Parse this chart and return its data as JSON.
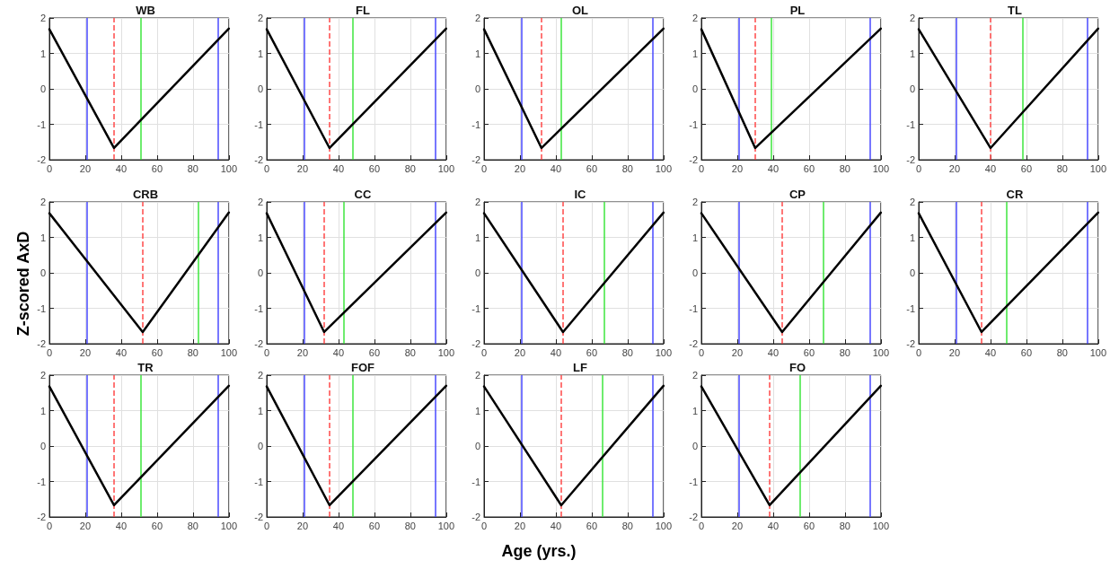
{
  "chart_data": [
    {
      "type": "line",
      "title": "WB",
      "x": [
        0,
        36,
        100
      ],
      "values": [
        1.68,
        -1.67,
        1.7
      ],
      "color": "#000000",
      "marker": "none",
      "xlim": [
        0,
        100
      ],
      "xticks": [
        0,
        20,
        40,
        60,
        80,
        100
      ],
      "ylim": [
        -2,
        2
      ],
      "yticks": [
        -2,
        -1,
        0,
        1,
        2
      ],
      "grid": true,
      "ref_lines": [
        {
          "axis": "x",
          "value": 21,
          "color": "#4a4aff"
        },
        {
          "axis": "x",
          "value": 36,
          "color": "#ff4a4a",
          "line_style": "dashed"
        },
        {
          "axis": "x",
          "value": 51,
          "color": "#3ee63e"
        },
        {
          "axis": "x",
          "value": 94,
          "color": "#4a4aff"
        }
      ]
    },
    {
      "type": "line",
      "title": "FL",
      "x": [
        0,
        35,
        100
      ],
      "values": [
        1.68,
        -1.67,
        1.7
      ],
      "color": "#000000",
      "marker": "none",
      "xlim": [
        0,
        100
      ],
      "xticks": [
        0,
        20,
        40,
        60,
        80,
        100
      ],
      "ylim": [
        -2,
        2
      ],
      "yticks": [
        -2,
        -1,
        0,
        1,
        2
      ],
      "grid": true,
      "ref_lines": [
        {
          "axis": "x",
          "value": 21,
          "color": "#4a4aff"
        },
        {
          "axis": "x",
          "value": 35,
          "color": "#ff4a4a",
          "line_style": "dashed"
        },
        {
          "axis": "x",
          "value": 48,
          "color": "#3ee63e"
        },
        {
          "axis": "x",
          "value": 94,
          "color": "#4a4aff"
        }
      ]
    },
    {
      "type": "line",
      "title": "OL",
      "x": [
        0,
        32,
        100
      ],
      "values": [
        1.68,
        -1.67,
        1.7
      ],
      "color": "#000000",
      "marker": "none",
      "xlim": [
        0,
        100
      ],
      "xticks": [
        0,
        20,
        40,
        60,
        80,
        100
      ],
      "ylim": [
        -2,
        2
      ],
      "yticks": [
        -2,
        -1,
        0,
        1,
        2
      ],
      "grid": true,
      "ref_lines": [
        {
          "axis": "x",
          "value": 21,
          "color": "#4a4aff"
        },
        {
          "axis": "x",
          "value": 32,
          "color": "#ff4a4a",
          "line_style": "dashed"
        },
        {
          "axis": "x",
          "value": 43,
          "color": "#3ee63e"
        },
        {
          "axis": "x",
          "value": 94,
          "color": "#4a4aff"
        }
      ]
    },
    {
      "type": "line",
      "title": "PL",
      "x": [
        0,
        30,
        100
      ],
      "values": [
        1.68,
        -1.67,
        1.7
      ],
      "color": "#000000",
      "marker": "none",
      "xlim": [
        0,
        100
      ],
      "xticks": [
        0,
        20,
        40,
        60,
        80,
        100
      ],
      "ylim": [
        -2,
        2
      ],
      "yticks": [
        -2,
        -1,
        0,
        1,
        2
      ],
      "grid": true,
      "ref_lines": [
        {
          "axis": "x",
          "value": 21,
          "color": "#4a4aff"
        },
        {
          "axis": "x",
          "value": 30,
          "color": "#ff4a4a",
          "line_style": "dashed"
        },
        {
          "axis": "x",
          "value": 39,
          "color": "#3ee63e"
        },
        {
          "axis": "x",
          "value": 94,
          "color": "#4a4aff"
        }
      ]
    },
    {
      "type": "line",
      "title": "TL",
      "x": [
        0,
        40,
        100
      ],
      "values": [
        1.68,
        -1.67,
        1.7
      ],
      "color": "#000000",
      "marker": "none",
      "xlim": [
        0,
        100
      ],
      "xticks": [
        0,
        20,
        40,
        60,
        80,
        100
      ],
      "ylim": [
        -2,
        2
      ],
      "yticks": [
        -2,
        -1,
        0,
        1,
        2
      ],
      "grid": true,
      "ref_lines": [
        {
          "axis": "x",
          "value": 21,
          "color": "#4a4aff"
        },
        {
          "axis": "x",
          "value": 40,
          "color": "#ff4a4a",
          "line_style": "dashed"
        },
        {
          "axis": "x",
          "value": 58,
          "color": "#3ee63e"
        },
        {
          "axis": "x",
          "value": 94,
          "color": "#4a4aff"
        }
      ]
    },
    {
      "type": "line",
      "title": "CRB",
      "ylabel": "Z-scored AxD",
      "x": [
        0,
        52,
        100
      ],
      "values": [
        1.68,
        -1.67,
        1.7
      ],
      "color": "#000000",
      "marker": "none",
      "xlim": [
        0,
        100
      ],
      "xticks": [
        0,
        20,
        40,
        60,
        80,
        100
      ],
      "ylim": [
        -2,
        2
      ],
      "yticks": [
        -2,
        -1,
        0,
        1,
        2
      ],
      "grid": true,
      "ref_lines": [
        {
          "axis": "x",
          "value": 21,
          "color": "#4a4aff"
        },
        {
          "axis": "x",
          "value": 52,
          "color": "#ff4a4a",
          "line_style": "dashed"
        },
        {
          "axis": "x",
          "value": 83,
          "color": "#3ee63e"
        },
        {
          "axis": "x",
          "value": 94,
          "color": "#4a4aff"
        }
      ]
    },
    {
      "type": "line",
      "title": "CC",
      "x": [
        0,
        32,
        100
      ],
      "values": [
        1.68,
        -1.67,
        1.7
      ],
      "color": "#000000",
      "marker": "none",
      "xlim": [
        0,
        100
      ],
      "xticks": [
        0,
        20,
        40,
        60,
        80,
        100
      ],
      "ylim": [
        -2,
        2
      ],
      "yticks": [
        -2,
        -1,
        0,
        1,
        2
      ],
      "grid": true,
      "ref_lines": [
        {
          "axis": "x",
          "value": 21,
          "color": "#4a4aff"
        },
        {
          "axis": "x",
          "value": 32,
          "color": "#ff4a4a",
          "line_style": "dashed"
        },
        {
          "axis": "x",
          "value": 43,
          "color": "#3ee63e"
        },
        {
          "axis": "x",
          "value": 94,
          "color": "#4a4aff"
        }
      ]
    },
    {
      "type": "line",
      "title": "IC",
      "x": [
        0,
        44,
        100
      ],
      "values": [
        1.68,
        -1.67,
        1.7
      ],
      "color": "#000000",
      "marker": "none",
      "xlim": [
        0,
        100
      ],
      "xticks": [
        0,
        20,
        40,
        60,
        80,
        100
      ],
      "ylim": [
        -2,
        2
      ],
      "yticks": [
        -2,
        -1,
        0,
        1,
        2
      ],
      "grid": true,
      "ref_lines": [
        {
          "axis": "x",
          "value": 21,
          "color": "#4a4aff"
        },
        {
          "axis": "x",
          "value": 44,
          "color": "#ff4a4a",
          "line_style": "dashed"
        },
        {
          "axis": "x",
          "value": 67,
          "color": "#3ee63e"
        },
        {
          "axis": "x",
          "value": 94,
          "color": "#4a4aff"
        }
      ]
    },
    {
      "type": "line",
      "title": "CP",
      "x": [
        0,
        45,
        100
      ],
      "values": [
        1.68,
        -1.67,
        1.7
      ],
      "color": "#000000",
      "marker": "none",
      "xlim": [
        0,
        100
      ],
      "xticks": [
        0,
        20,
        40,
        60,
        80,
        100
      ],
      "ylim": [
        -2,
        2
      ],
      "yticks": [
        -2,
        -1,
        0,
        1,
        2
      ],
      "grid": true,
      "ref_lines": [
        {
          "axis": "x",
          "value": 21,
          "color": "#4a4aff"
        },
        {
          "axis": "x",
          "value": 45,
          "color": "#ff4a4a",
          "line_style": "dashed"
        },
        {
          "axis": "x",
          "value": 68,
          "color": "#3ee63e"
        },
        {
          "axis": "x",
          "value": 94,
          "color": "#4a4aff"
        }
      ]
    },
    {
      "type": "line",
      "title": "CR",
      "x": [
        0,
        35,
        100
      ],
      "values": [
        1.68,
        -1.67,
        1.7
      ],
      "color": "#000000",
      "marker": "none",
      "xlim": [
        0,
        100
      ],
      "xticks": [
        0,
        20,
        40,
        60,
        80,
        100
      ],
      "ylim": [
        -2,
        2
      ],
      "yticks": [
        -2,
        -1,
        0,
        1,
        2
      ],
      "grid": true,
      "ref_lines": [
        {
          "axis": "x",
          "value": 21,
          "color": "#4a4aff"
        },
        {
          "axis": "x",
          "value": 35,
          "color": "#ff4a4a",
          "line_style": "dashed"
        },
        {
          "axis": "x",
          "value": 49,
          "color": "#3ee63e"
        },
        {
          "axis": "x",
          "value": 94,
          "color": "#4a4aff"
        }
      ]
    },
    {
      "type": "line",
      "title": "TR",
      "x": [
        0,
        36,
        100
      ],
      "values": [
        1.68,
        -1.67,
        1.7
      ],
      "color": "#000000",
      "marker": "none",
      "xlim": [
        0,
        100
      ],
      "xticks": [
        0,
        20,
        40,
        60,
        80,
        100
      ],
      "ylim": [
        -2,
        2
      ],
      "yticks": [
        -2,
        -1,
        0,
        1,
        2
      ],
      "grid": true,
      "ref_lines": [
        {
          "axis": "x",
          "value": 21,
          "color": "#4a4aff"
        },
        {
          "axis": "x",
          "value": 36,
          "color": "#ff4a4a",
          "line_style": "dashed"
        },
        {
          "axis": "x",
          "value": 51,
          "color": "#3ee63e"
        },
        {
          "axis": "x",
          "value": 94,
          "color": "#4a4aff"
        }
      ]
    },
    {
      "type": "line",
      "title": "FOF",
      "x": [
        0,
        35,
        100
      ],
      "values": [
        1.68,
        -1.67,
        1.7
      ],
      "color": "#000000",
      "marker": "none",
      "xlim": [
        0,
        100
      ],
      "xticks": [
        0,
        20,
        40,
        60,
        80,
        100
      ],
      "ylim": [
        -2,
        2
      ],
      "yticks": [
        -2,
        -1,
        0,
        1,
        2
      ],
      "grid": true,
      "ref_lines": [
        {
          "axis": "x",
          "value": 21,
          "color": "#4a4aff"
        },
        {
          "axis": "x",
          "value": 35,
          "color": "#ff4a4a",
          "line_style": "dashed"
        },
        {
          "axis": "x",
          "value": 48,
          "color": "#3ee63e"
        },
        {
          "axis": "x",
          "value": 94,
          "color": "#4a4aff"
        }
      ]
    },
    {
      "type": "line",
      "title": "LF",
      "xlabel": "Age (yrs.)",
      "x": [
        0,
        43,
        100
      ],
      "values": [
        1.68,
        -1.67,
        1.7
      ],
      "color": "#000000",
      "marker": "none",
      "xlim": [
        0,
        100
      ],
      "xticks": [
        0,
        20,
        40,
        60,
        80,
        100
      ],
      "ylim": [
        -2,
        2
      ],
      "yticks": [
        -2,
        -1,
        0,
        1,
        2
      ],
      "grid": true,
      "ref_lines": [
        {
          "axis": "x",
          "value": 21,
          "color": "#4a4aff"
        },
        {
          "axis": "x",
          "value": 43,
          "color": "#ff4a4a",
          "line_style": "dashed"
        },
        {
          "axis": "x",
          "value": 66,
          "color": "#3ee63e"
        },
        {
          "axis": "x",
          "value": 94,
          "color": "#4a4aff"
        }
      ]
    },
    {
      "type": "line",
      "title": "FO",
      "x": [
        0,
        38,
        100
      ],
      "values": [
        1.68,
        -1.67,
        1.7
      ],
      "color": "#000000",
      "marker": "none",
      "xlim": [
        0,
        100
      ],
      "xticks": [
        0,
        20,
        40,
        60,
        80,
        100
      ],
      "ylim": [
        -2,
        2
      ],
      "yticks": [
        -2,
        -1,
        0,
        1,
        2
      ],
      "grid": true,
      "ref_lines": [
        {
          "axis": "x",
          "value": 21,
          "color": "#4a4aff"
        },
        {
          "axis": "x",
          "value": 38,
          "color": "#ff4a4a",
          "line_style": "dashed"
        },
        {
          "axis": "x",
          "value": 55,
          "color": "#3ee63e"
        },
        {
          "axis": "x",
          "value": 94,
          "color": "#4a4aff"
        }
      ]
    }
  ]
}
